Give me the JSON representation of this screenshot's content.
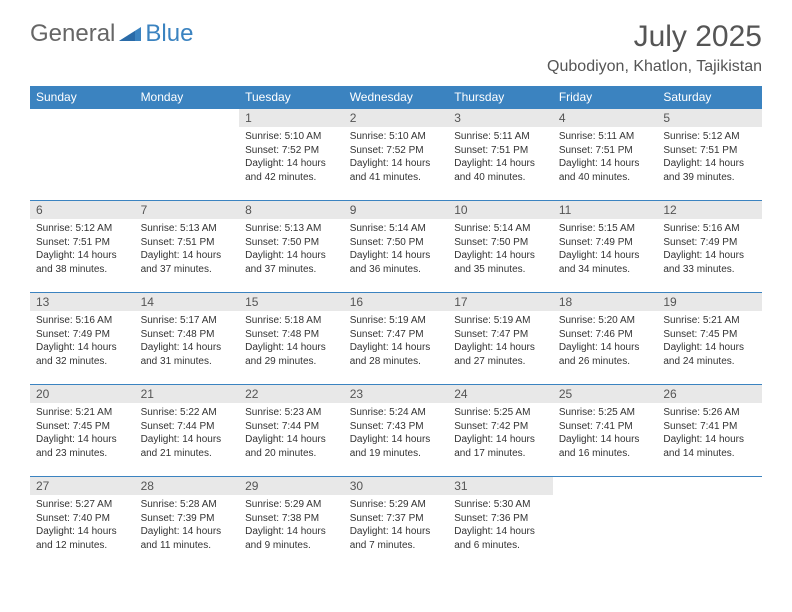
{
  "brand": {
    "part1": "General",
    "part2": "Blue"
  },
  "title": "July 2025",
  "location": "Qubodiyon, Khatlon, Tajikistan",
  "colors": {
    "header_bg": "#3b83c0",
    "daynum_bg": "#e8e8e8",
    "border": "#3b83c0"
  },
  "weekdays": [
    "Sunday",
    "Monday",
    "Tuesday",
    "Wednesday",
    "Thursday",
    "Friday",
    "Saturday"
  ],
  "weeks": [
    [
      null,
      null,
      {
        "n": "1",
        "sr": "Sunrise: 5:10 AM",
        "ss": "Sunset: 7:52 PM",
        "d1": "Daylight: 14 hours",
        "d2": "and 42 minutes."
      },
      {
        "n": "2",
        "sr": "Sunrise: 5:10 AM",
        "ss": "Sunset: 7:52 PM",
        "d1": "Daylight: 14 hours",
        "d2": "and 41 minutes."
      },
      {
        "n": "3",
        "sr": "Sunrise: 5:11 AM",
        "ss": "Sunset: 7:51 PM",
        "d1": "Daylight: 14 hours",
        "d2": "and 40 minutes."
      },
      {
        "n": "4",
        "sr": "Sunrise: 5:11 AM",
        "ss": "Sunset: 7:51 PM",
        "d1": "Daylight: 14 hours",
        "d2": "and 40 minutes."
      },
      {
        "n": "5",
        "sr": "Sunrise: 5:12 AM",
        "ss": "Sunset: 7:51 PM",
        "d1": "Daylight: 14 hours",
        "d2": "and 39 minutes."
      }
    ],
    [
      {
        "n": "6",
        "sr": "Sunrise: 5:12 AM",
        "ss": "Sunset: 7:51 PM",
        "d1": "Daylight: 14 hours",
        "d2": "and 38 minutes."
      },
      {
        "n": "7",
        "sr": "Sunrise: 5:13 AM",
        "ss": "Sunset: 7:51 PM",
        "d1": "Daylight: 14 hours",
        "d2": "and 37 minutes."
      },
      {
        "n": "8",
        "sr": "Sunrise: 5:13 AM",
        "ss": "Sunset: 7:50 PM",
        "d1": "Daylight: 14 hours",
        "d2": "and 37 minutes."
      },
      {
        "n": "9",
        "sr": "Sunrise: 5:14 AM",
        "ss": "Sunset: 7:50 PM",
        "d1": "Daylight: 14 hours",
        "d2": "and 36 minutes."
      },
      {
        "n": "10",
        "sr": "Sunrise: 5:14 AM",
        "ss": "Sunset: 7:50 PM",
        "d1": "Daylight: 14 hours",
        "d2": "and 35 minutes."
      },
      {
        "n": "11",
        "sr": "Sunrise: 5:15 AM",
        "ss": "Sunset: 7:49 PM",
        "d1": "Daylight: 14 hours",
        "d2": "and 34 minutes."
      },
      {
        "n": "12",
        "sr": "Sunrise: 5:16 AM",
        "ss": "Sunset: 7:49 PM",
        "d1": "Daylight: 14 hours",
        "d2": "and 33 minutes."
      }
    ],
    [
      {
        "n": "13",
        "sr": "Sunrise: 5:16 AM",
        "ss": "Sunset: 7:49 PM",
        "d1": "Daylight: 14 hours",
        "d2": "and 32 minutes."
      },
      {
        "n": "14",
        "sr": "Sunrise: 5:17 AM",
        "ss": "Sunset: 7:48 PM",
        "d1": "Daylight: 14 hours",
        "d2": "and 31 minutes."
      },
      {
        "n": "15",
        "sr": "Sunrise: 5:18 AM",
        "ss": "Sunset: 7:48 PM",
        "d1": "Daylight: 14 hours",
        "d2": "and 29 minutes."
      },
      {
        "n": "16",
        "sr": "Sunrise: 5:19 AM",
        "ss": "Sunset: 7:47 PM",
        "d1": "Daylight: 14 hours",
        "d2": "and 28 minutes."
      },
      {
        "n": "17",
        "sr": "Sunrise: 5:19 AM",
        "ss": "Sunset: 7:47 PM",
        "d1": "Daylight: 14 hours",
        "d2": "and 27 minutes."
      },
      {
        "n": "18",
        "sr": "Sunrise: 5:20 AM",
        "ss": "Sunset: 7:46 PM",
        "d1": "Daylight: 14 hours",
        "d2": "and 26 minutes."
      },
      {
        "n": "19",
        "sr": "Sunrise: 5:21 AM",
        "ss": "Sunset: 7:45 PM",
        "d1": "Daylight: 14 hours",
        "d2": "and 24 minutes."
      }
    ],
    [
      {
        "n": "20",
        "sr": "Sunrise: 5:21 AM",
        "ss": "Sunset: 7:45 PM",
        "d1": "Daylight: 14 hours",
        "d2": "and 23 minutes."
      },
      {
        "n": "21",
        "sr": "Sunrise: 5:22 AM",
        "ss": "Sunset: 7:44 PM",
        "d1": "Daylight: 14 hours",
        "d2": "and 21 minutes."
      },
      {
        "n": "22",
        "sr": "Sunrise: 5:23 AM",
        "ss": "Sunset: 7:44 PM",
        "d1": "Daylight: 14 hours",
        "d2": "and 20 minutes."
      },
      {
        "n": "23",
        "sr": "Sunrise: 5:24 AM",
        "ss": "Sunset: 7:43 PM",
        "d1": "Daylight: 14 hours",
        "d2": "and 19 minutes."
      },
      {
        "n": "24",
        "sr": "Sunrise: 5:25 AM",
        "ss": "Sunset: 7:42 PM",
        "d1": "Daylight: 14 hours",
        "d2": "and 17 minutes."
      },
      {
        "n": "25",
        "sr": "Sunrise: 5:25 AM",
        "ss": "Sunset: 7:41 PM",
        "d1": "Daylight: 14 hours",
        "d2": "and 16 minutes."
      },
      {
        "n": "26",
        "sr": "Sunrise: 5:26 AM",
        "ss": "Sunset: 7:41 PM",
        "d1": "Daylight: 14 hours",
        "d2": "and 14 minutes."
      }
    ],
    [
      {
        "n": "27",
        "sr": "Sunrise: 5:27 AM",
        "ss": "Sunset: 7:40 PM",
        "d1": "Daylight: 14 hours",
        "d2": "and 12 minutes."
      },
      {
        "n": "28",
        "sr": "Sunrise: 5:28 AM",
        "ss": "Sunset: 7:39 PM",
        "d1": "Daylight: 14 hours",
        "d2": "and 11 minutes."
      },
      {
        "n": "29",
        "sr": "Sunrise: 5:29 AM",
        "ss": "Sunset: 7:38 PM",
        "d1": "Daylight: 14 hours",
        "d2": "and 9 minutes."
      },
      {
        "n": "30",
        "sr": "Sunrise: 5:29 AM",
        "ss": "Sunset: 7:37 PM",
        "d1": "Daylight: 14 hours",
        "d2": "and 7 minutes."
      },
      {
        "n": "31",
        "sr": "Sunrise: 5:30 AM",
        "ss": "Sunset: 7:36 PM",
        "d1": "Daylight: 14 hours",
        "d2": "and 6 minutes."
      },
      null,
      null
    ]
  ]
}
